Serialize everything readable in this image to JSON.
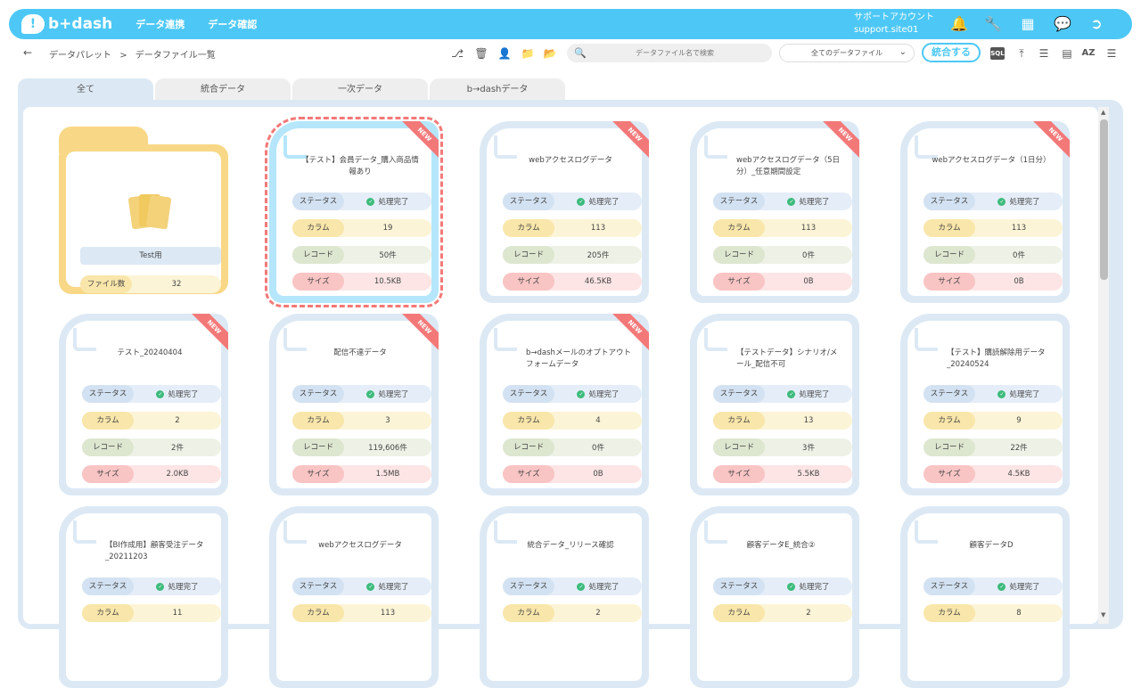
{
  "header": {
    "logo": "b+dash",
    "nav": [
      "データ連携",
      "データ確認"
    ],
    "account_name": "サポートアカウント",
    "account_site": "support.site01",
    "icons": [
      "bell-icon",
      "wrench-icon",
      "grid-icon",
      "chat-icon",
      "logout-icon"
    ]
  },
  "breadcrumb": [
    "データパレット",
    ">",
    "データファイル一覧"
  ],
  "toolbar": {
    "search_placeholder": "データファイル名で検索",
    "filter_value": "全てのデータファイル",
    "merge_label": "統合する",
    "sql_label": "SQL",
    "az_label": "AZ"
  },
  "tabs": [
    "全て",
    "統合データ",
    "一次データ",
    "b→dashデータ"
  ],
  "labels": {
    "status": "ステータス",
    "column": "カラム",
    "record": "レコード",
    "size": "サイズ",
    "file_count": "ファイル数",
    "new": "NEW",
    "done": "処理完了"
  },
  "folder": {
    "name": "Test用",
    "file_count": "32"
  },
  "cards": [
    {
      "title": "【テスト】会員データ_購入商品情報あり",
      "column": "19",
      "record": "50件",
      "size": "10.5KB",
      "new": true,
      "selected": true
    },
    {
      "title": "webアクセスログデータ",
      "column": "113",
      "record": "205件",
      "size": "46.5KB",
      "new": true
    },
    {
      "title": "webアクセスログデータ（5日分）_任意期間設定",
      "column": "113",
      "record": "0件",
      "size": "0B",
      "new": true
    },
    {
      "title": "webアクセスログデータ（1日分）",
      "column": "113",
      "record": "0件",
      "size": "0B",
      "new": true
    },
    {
      "title": "テスト_20240404",
      "column": "2",
      "record": "2件",
      "size": "2.0KB",
      "new": true
    },
    {
      "title": "配信不達データ",
      "column": "3",
      "record": "119,606件",
      "size": "1.5MB",
      "new": true
    },
    {
      "title": "b→dashメールのオプトアウトフォームデータ",
      "column": "4",
      "record": "0件",
      "size": "0B",
      "new": true
    },
    {
      "title": "【テストデータ】シナリオ/メール_配信不可",
      "column": "13",
      "record": "3件",
      "size": "5.5KB",
      "new": false
    },
    {
      "title": "【テスト】購読解除用データ_20240524",
      "column": "9",
      "record": "22件",
      "size": "4.5KB",
      "new": false
    },
    {
      "title": "【BI作成用】顧客受注データ_20211203",
      "column": "11",
      "new": false
    },
    {
      "title": "webアクセスログデータ",
      "column": "113",
      "new": false
    },
    {
      "title": "統合データ_リリース確認",
      "column": "2",
      "new": false
    },
    {
      "title": "顧客データE_統合②",
      "column": "2",
      "new": false
    },
    {
      "title": "顧客データD",
      "column": "8",
      "new": false
    }
  ]
}
